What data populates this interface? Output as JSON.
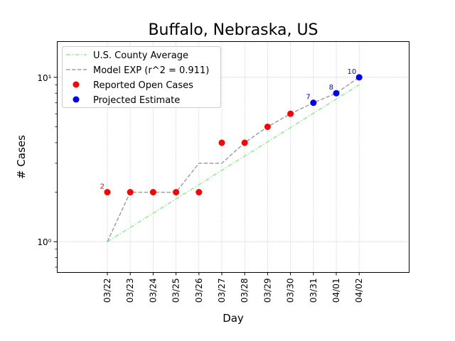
{
  "chart_data": {
    "type": "line",
    "title": "Buffalo, Nebraska, US",
    "xlabel": "Day",
    "ylabel": "# Cases",
    "yscale": "log",
    "ylim": [
      0.65,
      16.5
    ],
    "yticks": [
      1,
      10
    ],
    "ytick_labels": [
      "10⁰",
      "10¹"
    ],
    "categories": [
      "03/22",
      "03/23",
      "03/24",
      "03/25",
      "03/26",
      "03/27",
      "03/28",
      "03/29",
      "03/30",
      "03/31",
      "04/01",
      "04/02"
    ],
    "grid": true,
    "legend_position": "top-left",
    "series": [
      {
        "name": "U.S. County Average",
        "kind": "line",
        "style": "dashdot",
        "color": "#90ee90",
        "values": [
          1.0,
          1.22,
          1.49,
          1.82,
          2.22,
          2.72,
          3.32,
          4.05,
          4.95,
          6.04,
          7.38,
          9.0
        ]
      },
      {
        "name": "Model EXP (r^2 = 0.911)",
        "kind": "line",
        "style": "dashed",
        "color": "#a0a0a0",
        "values": [
          1,
          2,
          2,
          2,
          3,
          3,
          4,
          5,
          6,
          7,
          8,
          10
        ]
      },
      {
        "name": "Reported Open Cases",
        "kind": "scatter",
        "color": "#ff0000",
        "x_index": [
          0,
          1,
          2,
          3,
          4,
          5,
          6,
          7,
          8
        ],
        "values": [
          2,
          2,
          2,
          2,
          2,
          4,
          4,
          5,
          6
        ]
      },
      {
        "name": "Projected Estimate",
        "kind": "scatter",
        "color": "#0000ff",
        "x_index": [
          9,
          10,
          11
        ],
        "values": [
          7,
          8,
          10
        ]
      }
    ],
    "annotations": [
      {
        "text": "2",
        "x_index": 0,
        "y": 2,
        "color": "#ff0000"
      },
      {
        "text": "7",
        "x_index": 9,
        "y": 7,
        "color": "#0000ff"
      },
      {
        "text": "8",
        "x_index": 10,
        "y": 8,
        "color": "#0000ff"
      },
      {
        "text": "10",
        "x_index": 11,
        "y": 10,
        "color": "#0000ff"
      }
    ]
  }
}
